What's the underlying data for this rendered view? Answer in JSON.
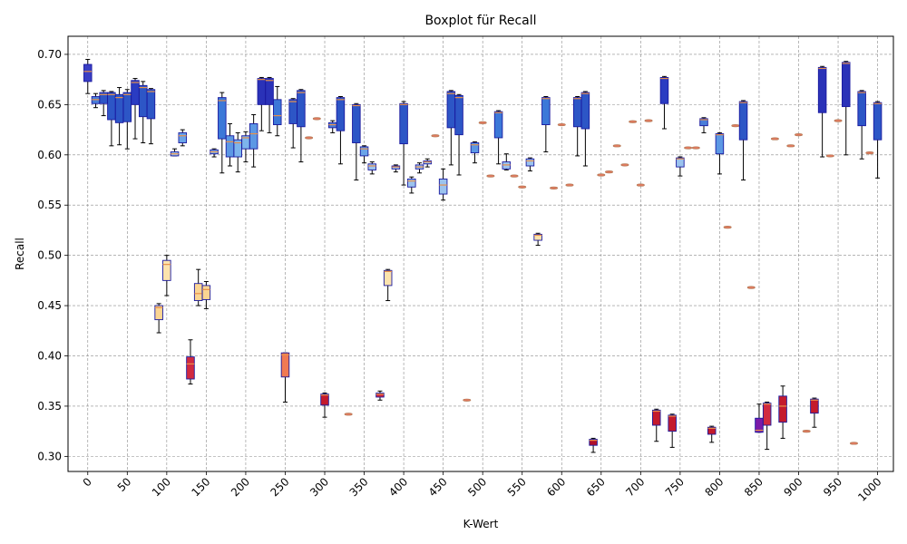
{
  "chart_data": {
    "type": "boxplot",
    "title": "Boxplot für Recall",
    "xlabel": "K-Wert",
    "ylabel": "Recall",
    "ylim": [
      0.285,
      0.718
    ],
    "xlim": [
      -25,
      1020
    ],
    "grid": true,
    "x_ticks": [
      0,
      50,
      100,
      150,
      200,
      250,
      300,
      350,
      400,
      450,
      500,
      550,
      600,
      650,
      700,
      750,
      800,
      850,
      900,
      950,
      1000
    ],
    "y_ticks": [
      "0.30",
      "0.35",
      "0.40",
      "0.45",
      "0.50",
      "0.55",
      "0.60",
      "0.65",
      "0.70"
    ],
    "boxes": [
      {
        "k": 0,
        "whislo": 0.661,
        "q1": 0.673,
        "med": 0.683,
        "q3": 0.69,
        "whishi": 0.695,
        "color": "#3a3fc4"
      },
      {
        "k": 10,
        "whislo": 0.647,
        "q1": 0.651,
        "med": 0.655,
        "q3": 0.658,
        "whishi": 0.661,
        "color": "#4a7ed8"
      },
      {
        "k": 20,
        "whislo": 0.639,
        "q1": 0.651,
        "med": 0.66,
        "q3": 0.662,
        "whishi": 0.664,
        "color": "#2d56c6"
      },
      {
        "k": 30,
        "whislo": 0.609,
        "q1": 0.635,
        "med": 0.66,
        "q3": 0.662,
        "whishi": 0.663,
        "color": "#2d56c6"
      },
      {
        "k": 40,
        "whislo": 0.61,
        "q1": 0.632,
        "med": 0.657,
        "q3": 0.66,
        "whishi": 0.667,
        "color": "#2d56c6"
      },
      {
        "k": 50,
        "whislo": 0.606,
        "q1": 0.633,
        "med": 0.66,
        "q3": 0.662,
        "whishi": 0.665,
        "color": "#2d56c6"
      },
      {
        "k": 60,
        "whislo": 0.616,
        "q1": 0.65,
        "med": 0.672,
        "q3": 0.674,
        "whishi": 0.676,
        "color": "#2a3cc2"
      },
      {
        "k": 70,
        "whislo": 0.612,
        "q1": 0.638,
        "med": 0.667,
        "q3": 0.669,
        "whishi": 0.673,
        "color": "#2d56c6"
      },
      {
        "k": 80,
        "whislo": 0.611,
        "q1": 0.636,
        "med": 0.663,
        "q3": 0.665,
        "whishi": 0.666,
        "color": "#2d56c6"
      },
      {
        "k": 90,
        "whislo": 0.423,
        "q1": 0.436,
        "med": 0.448,
        "q3": 0.45,
        "whishi": 0.452,
        "color": "#fbd592"
      },
      {
        "k": 100,
        "whislo": 0.46,
        "q1": 0.475,
        "med": 0.491,
        "q3": 0.495,
        "whishi": 0.5,
        "color": "#fce3ad"
      },
      {
        "k": 110,
        "whislo": 0.599,
        "q1": 0.599,
        "med": 0.601,
        "q3": 0.603,
        "whishi": 0.606,
        "color": "#9bc3ee"
      },
      {
        "k": 120,
        "whislo": 0.609,
        "q1": 0.612,
        "med": 0.619,
        "q3": 0.622,
        "whishi": 0.625,
        "color": "#6aa4e8"
      },
      {
        "k": 130,
        "whislo": 0.372,
        "q1": 0.377,
        "med": 0.392,
        "q3": 0.399,
        "whishi": 0.416,
        "color": "#d12a40"
      },
      {
        "k": 140,
        "whislo": 0.45,
        "q1": 0.455,
        "med": 0.462,
        "q3": 0.472,
        "whishi": 0.486,
        "color": "#fbd592"
      },
      {
        "k": 150,
        "whislo": 0.447,
        "q1": 0.456,
        "med": 0.466,
        "q3": 0.47,
        "whishi": 0.474,
        "color": "#fbd592"
      },
      {
        "k": 160,
        "whislo": 0.598,
        "q1": 0.601,
        "med": 0.603,
        "q3": 0.605,
        "whishi": 0.606,
        "color": "#7db4ec"
      },
      {
        "k": 170,
        "whislo": 0.582,
        "q1": 0.616,
        "med": 0.654,
        "q3": 0.657,
        "whishi": 0.662,
        "color": "#3c78d8"
      },
      {
        "k": 180,
        "whislo": 0.589,
        "q1": 0.598,
        "med": 0.613,
        "q3": 0.619,
        "whishi": 0.631,
        "color": "#5c98e4"
      },
      {
        "k": 190,
        "whislo": 0.583,
        "q1": 0.598,
        "med": 0.612,
        "q3": 0.615,
        "whishi": 0.622,
        "color": "#7db4ec"
      },
      {
        "k": 200,
        "whislo": 0.593,
        "q1": 0.606,
        "med": 0.617,
        "q3": 0.619,
        "whishi": 0.623,
        "color": "#7db4ec"
      },
      {
        "k": 210,
        "whislo": 0.588,
        "q1": 0.606,
        "med": 0.621,
        "q3": 0.631,
        "whishi": 0.64,
        "color": "#5c98e4"
      },
      {
        "k": 220,
        "whislo": 0.624,
        "q1": 0.65,
        "med": 0.675,
        "q3": 0.676,
        "whishi": 0.677,
        "color": "#2a32b8"
      },
      {
        "k": 230,
        "whislo": 0.622,
        "q1": 0.65,
        "med": 0.674,
        "q3": 0.676,
        "whishi": 0.677,
        "color": "#2a32b8"
      },
      {
        "k": 240,
        "whislo": 0.619,
        "q1": 0.63,
        "med": 0.639,
        "q3": 0.655,
        "whishi": 0.668,
        "color": "#3c78d8"
      },
      {
        "k": 250,
        "whislo": 0.354,
        "q1": 0.379,
        "med": 0.401,
        "q3": 0.403,
        "whishi": 0.403,
        "color": "#f07a52"
      },
      {
        "k": 260,
        "whislo": 0.607,
        "q1": 0.631,
        "med": 0.653,
        "q3": 0.655,
        "whishi": 0.656,
        "color": "#2d56c6"
      },
      {
        "k": 270,
        "whislo": 0.593,
        "q1": 0.628,
        "med": 0.662,
        "q3": 0.664,
        "whishi": 0.665,
        "color": "#2d56c6"
      },
      {
        "k": 280,
        "whislo": 0.617,
        "q1": 0.617,
        "med": 0.617,
        "q3": 0.617,
        "whishi": 0.617,
        "color": "#e07a5f"
      },
      {
        "k": 290,
        "whislo": 0.636,
        "q1": 0.636,
        "med": 0.636,
        "q3": 0.636,
        "whishi": 0.636,
        "color": "#e07a5f"
      },
      {
        "k": 300,
        "whislo": 0.339,
        "q1": 0.351,
        "med": 0.361,
        "q3": 0.362,
        "whishi": 0.363,
        "color": "#c41a2c"
      },
      {
        "k": 310,
        "whislo": 0.622,
        "q1": 0.627,
        "med": 0.63,
        "q3": 0.632,
        "whishi": 0.634,
        "color": "#4a7ed8"
      },
      {
        "k": 320,
        "whislo": 0.591,
        "q1": 0.624,
        "med": 0.655,
        "q3": 0.657,
        "whishi": 0.658,
        "color": "#2d56c6"
      },
      {
        "k": 330,
        "whislo": 0.342,
        "q1": 0.342,
        "med": 0.342,
        "q3": 0.342,
        "whishi": 0.342,
        "color": "#e07a5f"
      },
      {
        "k": 340,
        "whislo": 0.575,
        "q1": 0.612,
        "med": 0.649,
        "q3": 0.65,
        "whishi": 0.651,
        "color": "#2d56c6"
      },
      {
        "k": 350,
        "whislo": 0.592,
        "q1": 0.599,
        "med": 0.606,
        "q3": 0.608,
        "whishi": 0.609,
        "color": "#6aa4e8"
      },
      {
        "k": 360,
        "whislo": 0.581,
        "q1": 0.585,
        "med": 0.589,
        "q3": 0.591,
        "whishi": 0.593,
        "color": "#9bc3ee"
      },
      {
        "k": 370,
        "whislo": 0.356,
        "q1": 0.359,
        "med": 0.362,
        "q3": 0.363,
        "whishi": 0.365,
        "color": "#d12a40"
      },
      {
        "k": 380,
        "whislo": 0.455,
        "q1": 0.47,
        "med": 0.484,
        "q3": 0.485,
        "whishi": 0.486,
        "color": "#fce3ad"
      },
      {
        "k": 390,
        "whislo": 0.583,
        "q1": 0.586,
        "med": 0.588,
        "q3": 0.589,
        "whishi": 0.59,
        "color": "#9bc3ee"
      },
      {
        "k": 400,
        "whislo": 0.57,
        "q1": 0.611,
        "med": 0.65,
        "q3": 0.651,
        "whishi": 0.653,
        "color": "#2d56c6"
      },
      {
        "k": 410,
        "whislo": 0.562,
        "q1": 0.568,
        "med": 0.574,
        "q3": 0.576,
        "whishi": 0.578,
        "color": "#9bc3ee"
      },
      {
        "k": 420,
        "whislo": 0.582,
        "q1": 0.586,
        "med": 0.588,
        "q3": 0.59,
        "whishi": 0.592,
        "color": "#9bc3ee"
      },
      {
        "k": 430,
        "whislo": 0.588,
        "q1": 0.591,
        "med": 0.593,
        "q3": 0.594,
        "whishi": 0.596,
        "color": "#9bc3ee"
      },
      {
        "k": 440,
        "whislo": 0.619,
        "q1": 0.619,
        "med": 0.619,
        "q3": 0.619,
        "whishi": 0.619,
        "color": "#e07a5f"
      },
      {
        "k": 450,
        "whislo": 0.555,
        "q1": 0.561,
        "med": 0.57,
        "q3": 0.576,
        "whishi": 0.586,
        "color": "#9bc3ee"
      },
      {
        "k": 460,
        "whislo": 0.59,
        "q1": 0.627,
        "med": 0.661,
        "q3": 0.663,
        "whishi": 0.664,
        "color": "#2d56c6"
      },
      {
        "k": 470,
        "whislo": 0.58,
        "q1": 0.62,
        "med": 0.657,
        "q3": 0.659,
        "whishi": 0.66,
        "color": "#2d56c6"
      },
      {
        "k": 480,
        "whislo": 0.356,
        "q1": 0.356,
        "med": 0.356,
        "q3": 0.356,
        "whishi": 0.356,
        "color": "#e07a5f"
      },
      {
        "k": 490,
        "whislo": 0.592,
        "q1": 0.602,
        "med": 0.61,
        "q3": 0.612,
        "whishi": 0.613,
        "color": "#5c98e4"
      },
      {
        "k": 500,
        "whislo": 0.632,
        "q1": 0.632,
        "med": 0.632,
        "q3": 0.632,
        "whishi": 0.632,
        "color": "#e07a5f"
      },
      {
        "k": 510,
        "whislo": 0.579,
        "q1": 0.579,
        "med": 0.579,
        "q3": 0.579,
        "whishi": 0.579,
        "color": "#e07a5f"
      },
      {
        "k": 520,
        "whislo": 0.591,
        "q1": 0.617,
        "med": 0.642,
        "q3": 0.643,
        "whishi": 0.644,
        "color": "#3c78d8"
      },
      {
        "k": 530,
        "whislo": 0.585,
        "q1": 0.586,
        "med": 0.59,
        "q3": 0.593,
        "whishi": 0.601,
        "color": "#9bc3ee"
      },
      {
        "k": 540,
        "whislo": 0.579,
        "q1": 0.579,
        "med": 0.579,
        "q3": 0.579,
        "whishi": 0.579,
        "color": "#e07a5f"
      },
      {
        "k": 550,
        "whislo": 0.568,
        "q1": 0.568,
        "med": 0.568,
        "q3": 0.568,
        "whishi": 0.568,
        "color": "#e07a5f"
      },
      {
        "k": 560,
        "whislo": 0.584,
        "q1": 0.589,
        "med": 0.594,
        "q3": 0.596,
        "whishi": 0.597,
        "color": "#9bc3ee"
      },
      {
        "k": 570,
        "whislo": 0.51,
        "q1": 0.515,
        "med": 0.52,
        "q3": 0.521,
        "whishi": 0.522,
        "color": "#fce3ad"
      },
      {
        "k": 580,
        "whislo": 0.603,
        "q1": 0.63,
        "med": 0.656,
        "q3": 0.657,
        "whishi": 0.658,
        "color": "#3c78d8"
      },
      {
        "k": 590,
        "whislo": 0.567,
        "q1": 0.567,
        "med": 0.567,
        "q3": 0.567,
        "whishi": 0.567,
        "color": "#e07a5f"
      },
      {
        "k": 600,
        "whislo": 0.63,
        "q1": 0.63,
        "med": 0.63,
        "q3": 0.63,
        "whishi": 0.63,
        "color": "#e07a5f"
      },
      {
        "k": 610,
        "whislo": 0.57,
        "q1": 0.57,
        "med": 0.57,
        "q3": 0.57,
        "whishi": 0.57,
        "color": "#e07a5f"
      },
      {
        "k": 620,
        "whislo": 0.599,
        "q1": 0.628,
        "med": 0.656,
        "q3": 0.657,
        "whishi": 0.658,
        "color": "#2d56c6"
      },
      {
        "k": 630,
        "whislo": 0.589,
        "q1": 0.626,
        "med": 0.661,
        "q3": 0.662,
        "whishi": 0.663,
        "color": "#2d56c6"
      },
      {
        "k": 640,
        "whislo": 0.304,
        "q1": 0.311,
        "med": 0.316,
        "q3": 0.317,
        "whishi": 0.318,
        "color": "#b0102a"
      },
      {
        "k": 650,
        "whislo": 0.58,
        "q1": 0.58,
        "med": 0.58,
        "q3": 0.58,
        "whishi": 0.58,
        "color": "#e07a5f"
      },
      {
        "k": 660,
        "whislo": 0.583,
        "q1": 0.583,
        "med": 0.583,
        "q3": 0.583,
        "whishi": 0.583,
        "color": "#e07a5f"
      },
      {
        "k": 670,
        "whislo": 0.609,
        "q1": 0.609,
        "med": 0.609,
        "q3": 0.609,
        "whishi": 0.609,
        "color": "#e07a5f"
      },
      {
        "k": 680,
        "whislo": 0.59,
        "q1": 0.59,
        "med": 0.59,
        "q3": 0.59,
        "whishi": 0.59,
        "color": "#e07a5f"
      },
      {
        "k": 690,
        "whislo": 0.633,
        "q1": 0.633,
        "med": 0.633,
        "q3": 0.633,
        "whishi": 0.633,
        "color": "#e07a5f"
      },
      {
        "k": 700,
        "whislo": 0.57,
        "q1": 0.57,
        "med": 0.57,
        "q3": 0.57,
        "whishi": 0.57,
        "color": "#e07a5f"
      },
      {
        "k": 710,
        "whislo": 0.634,
        "q1": 0.634,
        "med": 0.634,
        "q3": 0.634,
        "whishi": 0.634,
        "color": "#e07a5f"
      },
      {
        "k": 720,
        "whislo": 0.315,
        "q1": 0.331,
        "med": 0.345,
        "q3": 0.346,
        "whishi": 0.347,
        "color": "#c41a2c"
      },
      {
        "k": 730,
        "whislo": 0.626,
        "q1": 0.651,
        "med": 0.676,
        "q3": 0.677,
        "whishi": 0.678,
        "color": "#2a3cc2"
      },
      {
        "k": 740,
        "whislo": 0.309,
        "q1": 0.325,
        "med": 0.34,
        "q3": 0.341,
        "whishi": 0.342,
        "color": "#c41a2c"
      },
      {
        "k": 750,
        "whislo": 0.579,
        "q1": 0.588,
        "med": 0.596,
        "q3": 0.597,
        "whishi": 0.598,
        "color": "#9bc3ee"
      },
      {
        "k": 760,
        "whislo": 0.607,
        "q1": 0.607,
        "med": 0.607,
        "q3": 0.607,
        "whishi": 0.607,
        "color": "#e07a5f"
      },
      {
        "k": 770,
        "whislo": 0.607,
        "q1": 0.607,
        "med": 0.607,
        "q3": 0.607,
        "whishi": 0.607,
        "color": "#e07a5f"
      },
      {
        "k": 780,
        "whislo": 0.622,
        "q1": 0.629,
        "med": 0.635,
        "q3": 0.636,
        "whishi": 0.637,
        "color": "#4a7ed8"
      },
      {
        "k": 790,
        "whislo": 0.314,
        "q1": 0.322,
        "med": 0.328,
        "q3": 0.329,
        "whishi": 0.33,
        "color": "#c41a2c"
      },
      {
        "k": 800,
        "whislo": 0.581,
        "q1": 0.601,
        "med": 0.62,
        "q3": 0.621,
        "whishi": 0.622,
        "color": "#5c98e4"
      },
      {
        "k": 810,
        "whislo": 0.528,
        "q1": 0.528,
        "med": 0.528,
        "q3": 0.528,
        "whishi": 0.528,
        "color": "#e07a5f"
      },
      {
        "k": 820,
        "whislo": 0.629,
        "q1": 0.629,
        "med": 0.629,
        "q3": 0.629,
        "whishi": 0.629,
        "color": "#e07a5f"
      },
      {
        "k": 830,
        "whislo": 0.575,
        "q1": 0.615,
        "med": 0.652,
        "q3": 0.653,
        "whishi": 0.654,
        "color": "#2d56c6"
      },
      {
        "k": 840,
        "whislo": 0.468,
        "q1": 0.468,
        "med": 0.468,
        "q3": 0.468,
        "whishi": 0.468,
        "color": "#e07a5f"
      },
      {
        "k": 850,
        "whislo": 0.324,
        "q1": 0.324,
        "med": 0.326,
        "q3": 0.338,
        "whishi": 0.352,
        "color": "#7a1aa8"
      },
      {
        "k": 860,
        "whislo": 0.307,
        "q1": 0.331,
        "med": 0.352,
        "q3": 0.353,
        "whishi": 0.354,
        "color": "#d12a40"
      },
      {
        "k": 870,
        "whislo": 0.616,
        "q1": 0.616,
        "med": 0.616,
        "q3": 0.616,
        "whishi": 0.616,
        "color": "#e07a5f"
      },
      {
        "k": 880,
        "whislo": 0.318,
        "q1": 0.334,
        "med": 0.35,
        "q3": 0.36,
        "whishi": 0.37,
        "color": "#c41a2c"
      },
      {
        "k": 890,
        "whislo": 0.609,
        "q1": 0.609,
        "med": 0.609,
        "q3": 0.609,
        "whishi": 0.609,
        "color": "#e07a5f"
      },
      {
        "k": 900,
        "whislo": 0.62,
        "q1": 0.62,
        "med": 0.62,
        "q3": 0.62,
        "whishi": 0.62,
        "color": "#e07a5f"
      },
      {
        "k": 910,
        "whislo": 0.325,
        "q1": 0.325,
        "med": 0.325,
        "q3": 0.325,
        "whishi": 0.325,
        "color": "#e07a5f"
      },
      {
        "k": 920,
        "whislo": 0.329,
        "q1": 0.343,
        "med": 0.356,
        "q3": 0.357,
        "whishi": 0.358,
        "color": "#c41a2c"
      },
      {
        "k": 930,
        "whislo": 0.598,
        "q1": 0.642,
        "med": 0.686,
        "q3": 0.687,
        "whishi": 0.688,
        "color": "#2a32b8"
      },
      {
        "k": 940,
        "whislo": 0.599,
        "q1": 0.599,
        "med": 0.599,
        "q3": 0.599,
        "whishi": 0.599,
        "color": "#e07a5f"
      },
      {
        "k": 950,
        "whislo": 0.634,
        "q1": 0.634,
        "med": 0.634,
        "q3": 0.634,
        "whishi": 0.634,
        "color": "#e07a5f"
      },
      {
        "k": 960,
        "whislo": 0.6,
        "q1": 0.648,
        "med": 0.691,
        "q3": 0.692,
        "whishi": 0.693,
        "color": "#2a32b8"
      },
      {
        "k": 970,
        "whislo": 0.313,
        "q1": 0.313,
        "med": 0.313,
        "q3": 0.313,
        "whishi": 0.313,
        "color": "#e07a5f"
      },
      {
        "k": 980,
        "whislo": 0.596,
        "q1": 0.629,
        "med": 0.662,
        "q3": 0.663,
        "whishi": 0.664,
        "color": "#2d56c6"
      },
      {
        "k": 990,
        "whislo": 0.602,
        "q1": 0.602,
        "med": 0.602,
        "q3": 0.602,
        "whishi": 0.602,
        "color": "#e07a5f"
      },
      {
        "k": 1000,
        "whislo": 0.577,
        "q1": 0.615,
        "med": 0.651,
        "q3": 0.652,
        "whishi": 0.653,
        "color": "#2d56c6"
      }
    ]
  }
}
